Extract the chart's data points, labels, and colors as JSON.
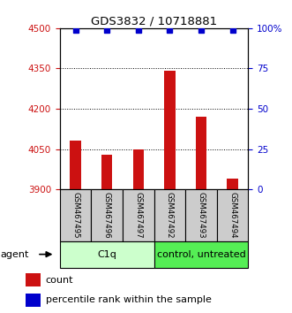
{
  "title": "GDS3832 / 10718881",
  "categories": [
    "GSM467495",
    "GSM467496",
    "GSM467497",
    "GSM467492",
    "GSM467493",
    "GSM467494"
  ],
  "bar_values": [
    4080,
    4030,
    4050,
    4340,
    4170,
    3940
  ],
  "bar_bottom": 3900,
  "percentile_values": [
    99,
    99,
    99,
    99,
    99,
    99
  ],
  "bar_color": "#cc1111",
  "dot_color": "#0000cc",
  "ylim_left": [
    3900,
    4500
  ],
  "ylim_right": [
    0,
    100
  ],
  "yticks_left": [
    3900,
    4050,
    4200,
    4350,
    4500
  ],
  "yticks_right": [
    0,
    25,
    50,
    75,
    100
  ],
  "ytick_labels_right": [
    "0",
    "25",
    "50",
    "75",
    "100%"
  ],
  "grid_lines": [
    4050,
    4200,
    4350
  ],
  "groups": [
    {
      "label": "C1q",
      "indices": [
        0,
        1,
        2
      ],
      "color": "#ccffcc"
    },
    {
      "label": "control, untreated",
      "indices": [
        3,
        4,
        5
      ],
      "color": "#55ee55"
    }
  ],
  "agent_label": "agent",
  "legend_count_label": "count",
  "legend_percentile_label": "percentile rank within the sample",
  "left_yaxis_color": "#cc1111",
  "right_yaxis_color": "#0000cc",
  "bar_width": 0.35,
  "sample_label_box_color": "#cccccc",
  "sample_label_box_edgecolor": "#000000"
}
